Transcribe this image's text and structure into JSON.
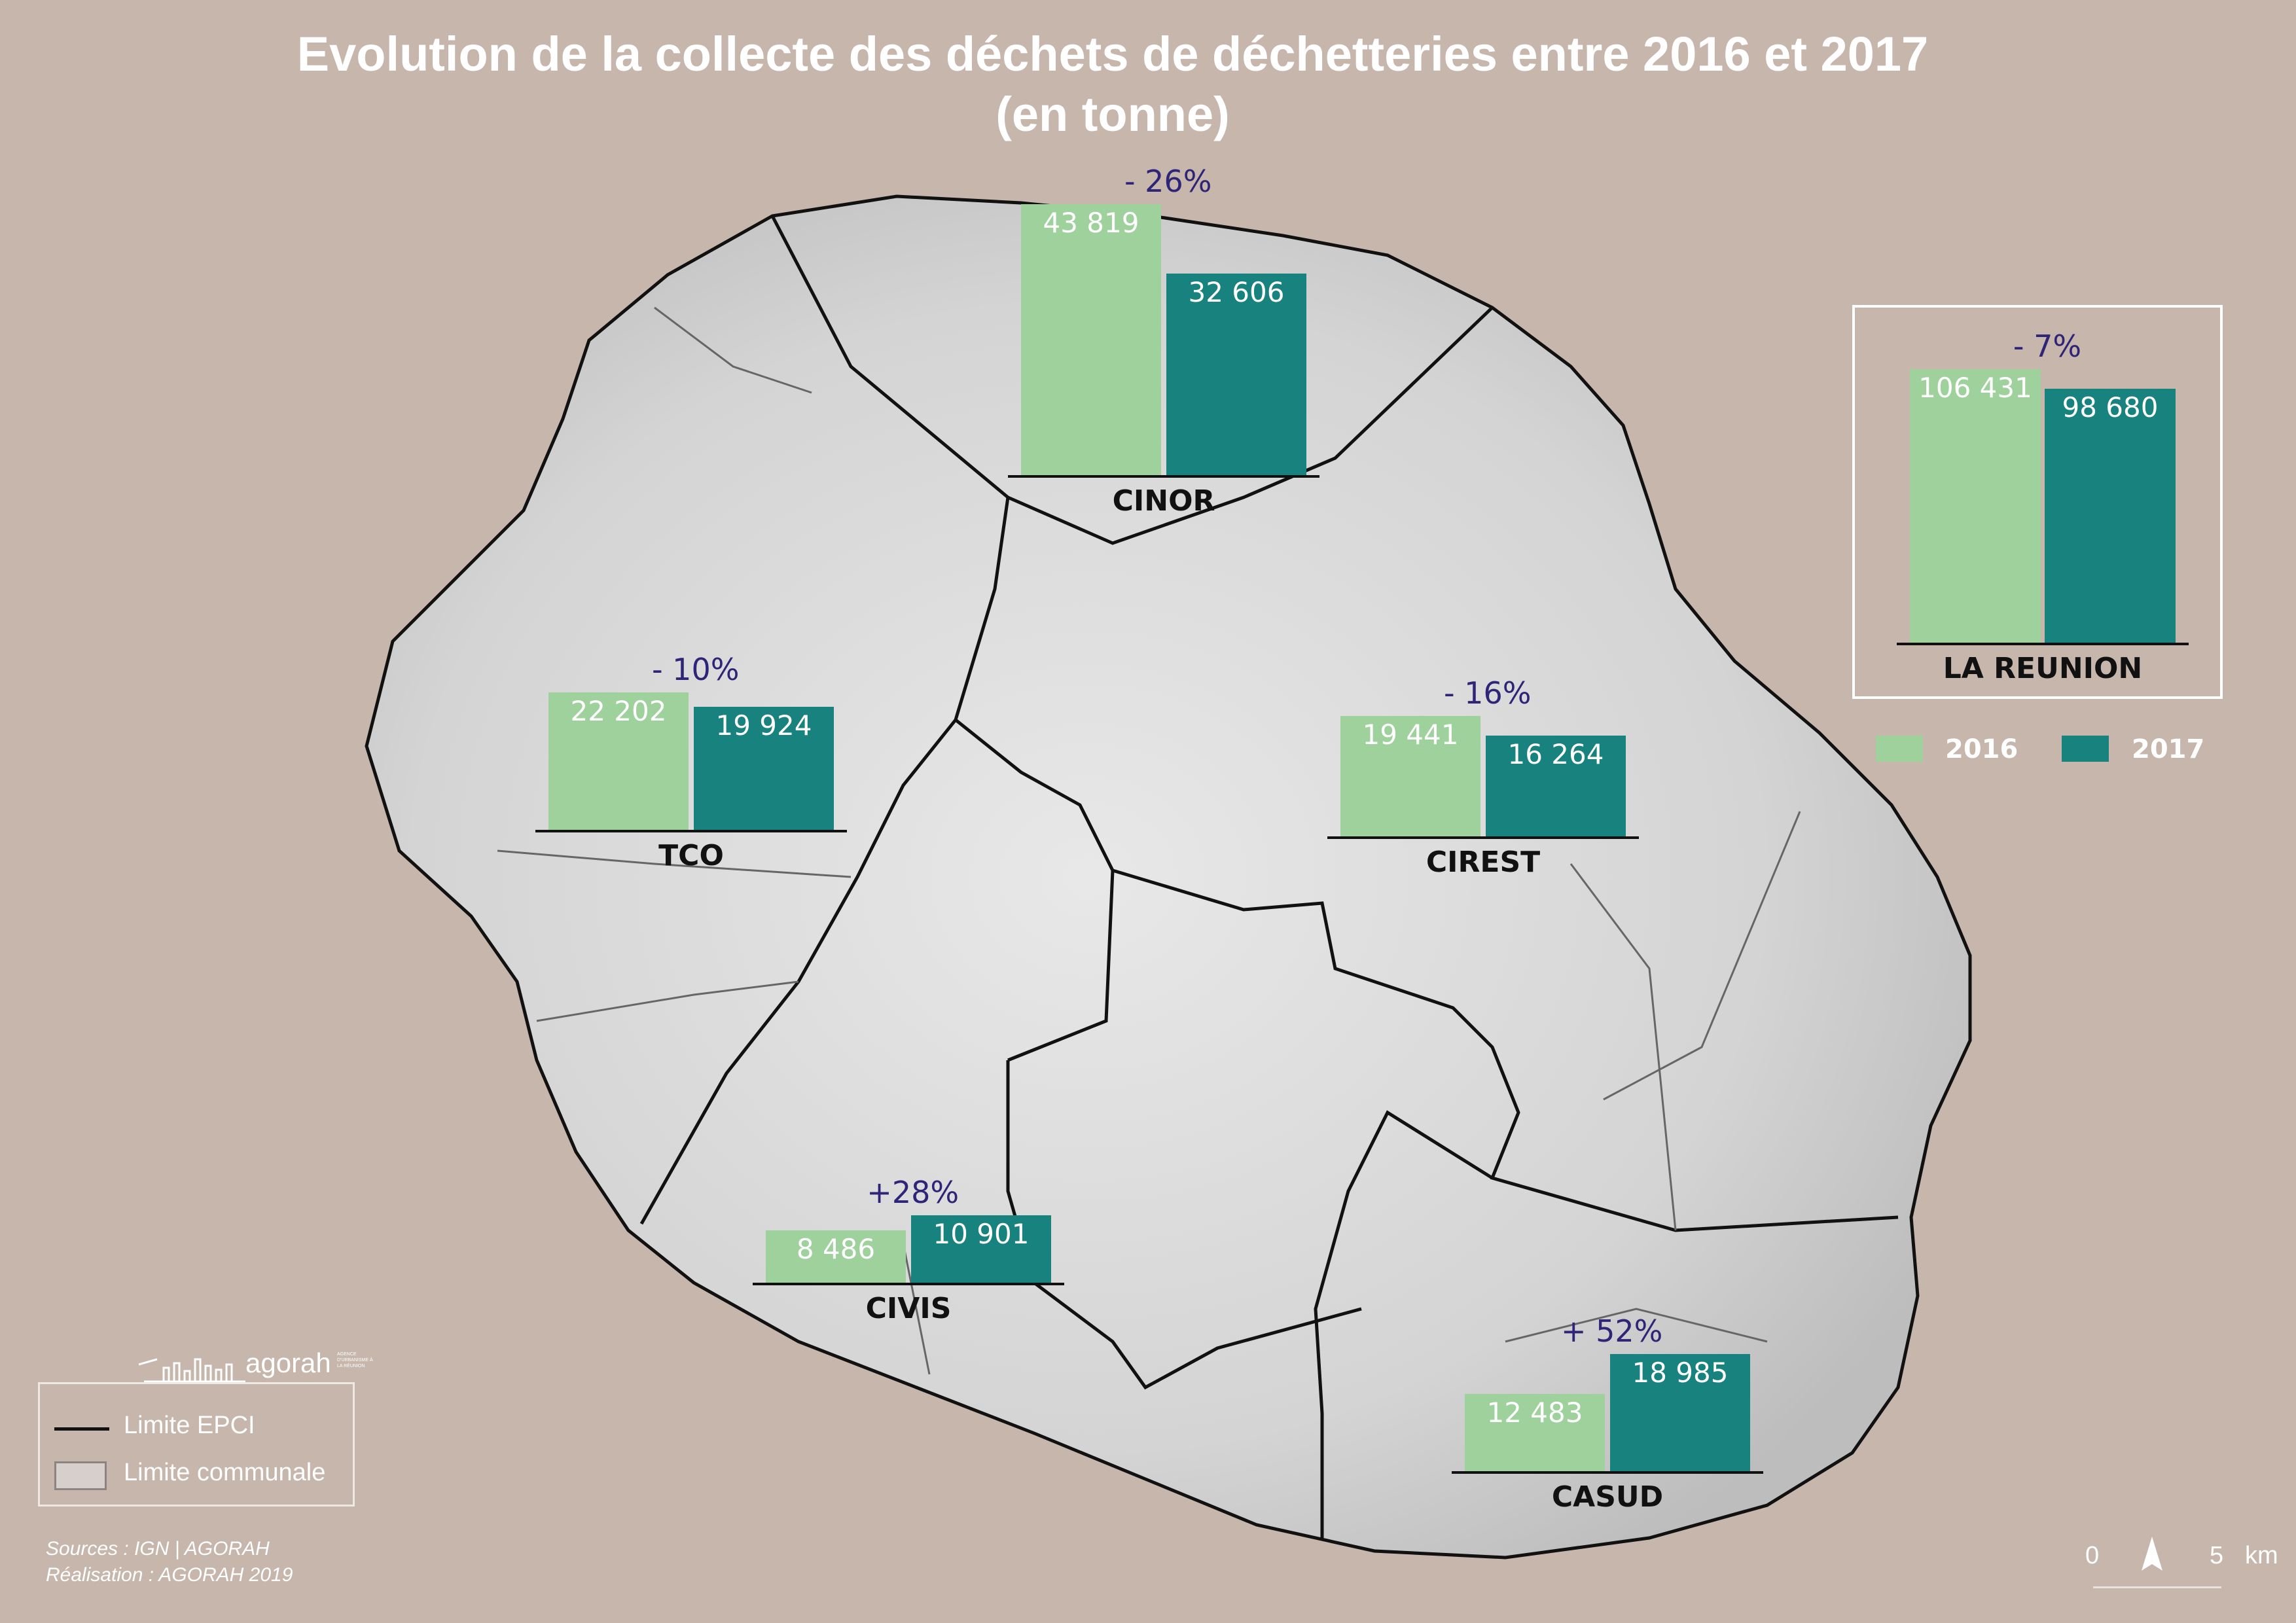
{
  "title": {
    "line1": "Evolution de la collecte des déchets de déchetteries entre 2016 et 2017",
    "line2": "(en tonne)"
  },
  "colors": {
    "y2016": "#9fd19d",
    "y2017": "#18827f",
    "percent": "#2e2478",
    "background": "#c6b6ab"
  },
  "chart_data": [
    {
      "type": "bar",
      "label": "CINOR",
      "categories": [
        "2016",
        "2017"
      ],
      "values": [
        43819,
        32606
      ],
      "value_labels": [
        "43 819",
        "32 606"
      ],
      "change": "- 26%"
    },
    {
      "type": "bar",
      "label": "TCO",
      "categories": [
        "2016",
        "2017"
      ],
      "values": [
        22202,
        19924
      ],
      "value_labels": [
        "22 202",
        "19 924"
      ],
      "change": "- 10%"
    },
    {
      "type": "bar",
      "label": "CIREST",
      "categories": [
        "2016",
        "2017"
      ],
      "values": [
        19441,
        16264
      ],
      "value_labels": [
        "19 441",
        "16 264"
      ],
      "change": "- 16%"
    },
    {
      "type": "bar",
      "label": "CIVIS",
      "categories": [
        "2016",
        "2017"
      ],
      "values": [
        8486,
        10901
      ],
      "value_labels": [
        "8 486",
        "10 901"
      ],
      "change": "+28%"
    },
    {
      "type": "bar",
      "label": "CASUD",
      "categories": [
        "2016",
        "2017"
      ],
      "values": [
        12483,
        18985
      ],
      "value_labels": [
        "12 483",
        "18 985"
      ],
      "change": "+ 52%"
    },
    {
      "type": "bar",
      "label": "LA REUNION",
      "categories": [
        "2016",
        "2017"
      ],
      "values": [
        106431,
        98680
      ],
      "value_labels": [
        "106 431",
        "98 680"
      ],
      "change": "- 7%"
    }
  ],
  "legend": {
    "y2016": "2016",
    "y2017": "2017"
  },
  "map_legend": {
    "epci": "Limite EPCI",
    "communale": "Limite communale"
  },
  "logo": {
    "text": "agorah",
    "sub": "AGENCE D'URBANISME À LA RÉUNION"
  },
  "credits": {
    "sources": "Sources : IGN | AGORAH",
    "realisation": "Réalisation : AGORAH 2019"
  },
  "scale": {
    "zero": "0",
    "five": "5",
    "unit": "km"
  },
  "icons": {
    "north": "north-arrow-icon"
  }
}
